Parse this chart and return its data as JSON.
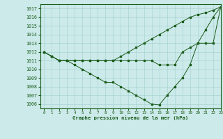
{
  "title": "Graphe pression niveau de la mer (hPa)",
  "background_color": "#cceaea",
  "grid_color": "#aad4d4",
  "line_color": "#1a5c1a",
  "xlim": [
    -0.5,
    23
  ],
  "ylim": [
    1005.5,
    1017.5
  ],
  "yticks": [
    1006,
    1007,
    1008,
    1009,
    1010,
    1011,
    1012,
    1013,
    1014,
    1015,
    1016,
    1017
  ],
  "xticks": [
    0,
    1,
    2,
    3,
    4,
    5,
    6,
    7,
    8,
    9,
    10,
    11,
    12,
    13,
    14,
    15,
    16,
    17,
    18,
    19,
    20,
    21,
    22,
    23
  ],
  "series": [
    [
      1012,
      1011.5,
      1011,
      1011,
      1010.5,
      1010,
      1009.5,
      1009,
      1008.5,
      1008.5,
      1008,
      1007.5,
      1007,
      1006.5,
      1006,
      1005.9,
      1007,
      1008,
      1009,
      1010.5,
      1013,
      1014.5,
      1016,
      1017.2
    ],
    [
      1012,
      1011.5,
      1011,
      1011,
      1011,
      1011,
      1011,
      1011,
      1011,
      1011,
      1011,
      1011,
      1011,
      1011,
      1011,
      1010.5,
      1010.5,
      1010.5,
      1012,
      1012.5,
      1013,
      1013,
      1013,
      1017.2
    ],
    [
      1012,
      1011.5,
      1011,
      1011,
      1011,
      1011,
      1011,
      1011,
      1011,
      1011,
      1011.5,
      1012,
      1012.5,
      1013,
      1013.5,
      1014,
      1014.5,
      1015,
      1015.5,
      1016,
      1016.3,
      1016.5,
      1016.8,
      1017.2
    ]
  ]
}
